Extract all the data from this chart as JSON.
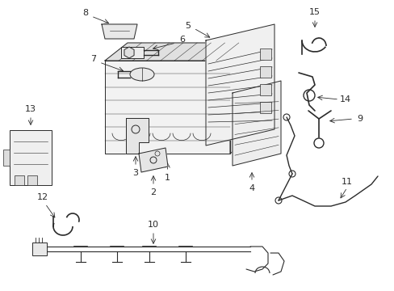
{
  "background_color": "#ffffff",
  "line_color": "#2a2a2a",
  "text_color": "#2a2a2a",
  "fig_width": 4.89,
  "fig_height": 3.6,
  "dpi": 100
}
